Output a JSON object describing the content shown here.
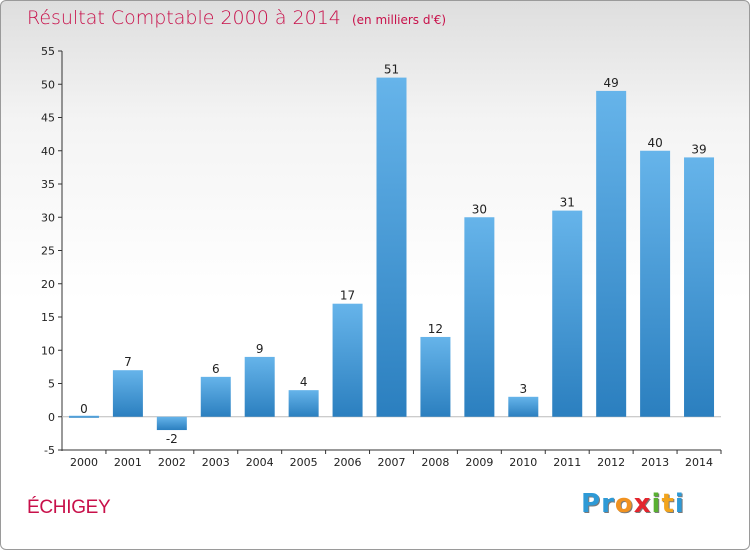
{
  "header": {
    "title": "Résultat Comptable 2000 à 2014",
    "unit": "(en milliers d'€)"
  },
  "footer": {
    "commune": "ÉCHIGEY",
    "logo_letters": [
      "P",
      "r",
      "o",
      "x",
      "i",
      "t",
      "i"
    ],
    "logo_colors": [
      "#2e9ad6",
      "#2e9ad6",
      "#f19220",
      "#e3262e",
      "#59b031",
      "#f2a41c",
      "#2e9ad6"
    ]
  },
  "colors": {
    "bar_light": "#66b4ea",
    "bar_dark": "#2b7fbf",
    "accent": "#c8104a"
  },
  "chart_data": {
    "type": "bar",
    "title": "Résultat Comptable 2000 à 2014",
    "subtitle": "(en milliers d'€)",
    "categories": [
      "2000",
      "2001",
      "2002",
      "2003",
      "2004",
      "2005",
      "2006",
      "2007",
      "2008",
      "2009",
      "2010",
      "2011",
      "2012",
      "2013",
      "2014"
    ],
    "values": [
      0,
      7,
      -2,
      6,
      9,
      4,
      17,
      51,
      12,
      30,
      3,
      31,
      49,
      40,
      39
    ],
    "yticks": [
      -5,
      0,
      5,
      10,
      15,
      20,
      25,
      30,
      35,
      40,
      45,
      50,
      55
    ],
    "ylim": [
      -5,
      55
    ],
    "grid": false,
    "legend": "none"
  }
}
